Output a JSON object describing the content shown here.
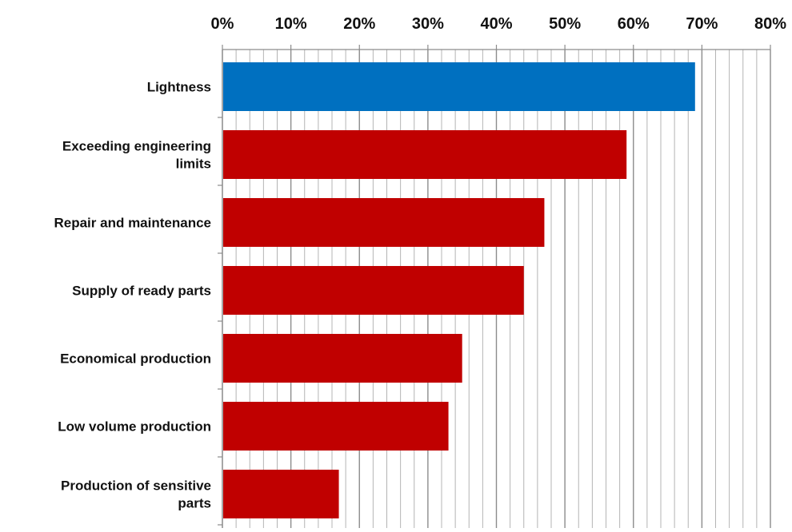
{
  "chart_data": {
    "type": "bar",
    "orientation": "horizontal",
    "categories": [
      [
        "Lightness"
      ],
      [
        "Exceeding engineering",
        "limits"
      ],
      [
        "Repair and maintenance"
      ],
      [
        "Supply of ready parts"
      ],
      [
        "Economical production"
      ],
      [
        "Low volume production"
      ],
      [
        "Production of sensitive",
        "parts"
      ]
    ],
    "values": [
      69,
      59,
      47,
      44,
      35,
      33,
      17
    ],
    "bar_colors": [
      "#0070c0",
      "#c00000",
      "#c00000",
      "#c00000",
      "#c00000",
      "#c00000",
      "#c00000"
    ],
    "xlim": [
      0,
      80
    ],
    "x_ticks": [
      0,
      10,
      20,
      30,
      40,
      50,
      60,
      70,
      80
    ],
    "x_tick_labels": [
      "0%",
      "10%",
      "20%",
      "30%",
      "40%",
      "50%",
      "60%",
      "70%",
      "80%"
    ],
    "minor_grid_step": 2,
    "xaxis_position": "top",
    "grid": true,
    "title": "",
    "xlabel": "",
    "ylabel": ""
  }
}
